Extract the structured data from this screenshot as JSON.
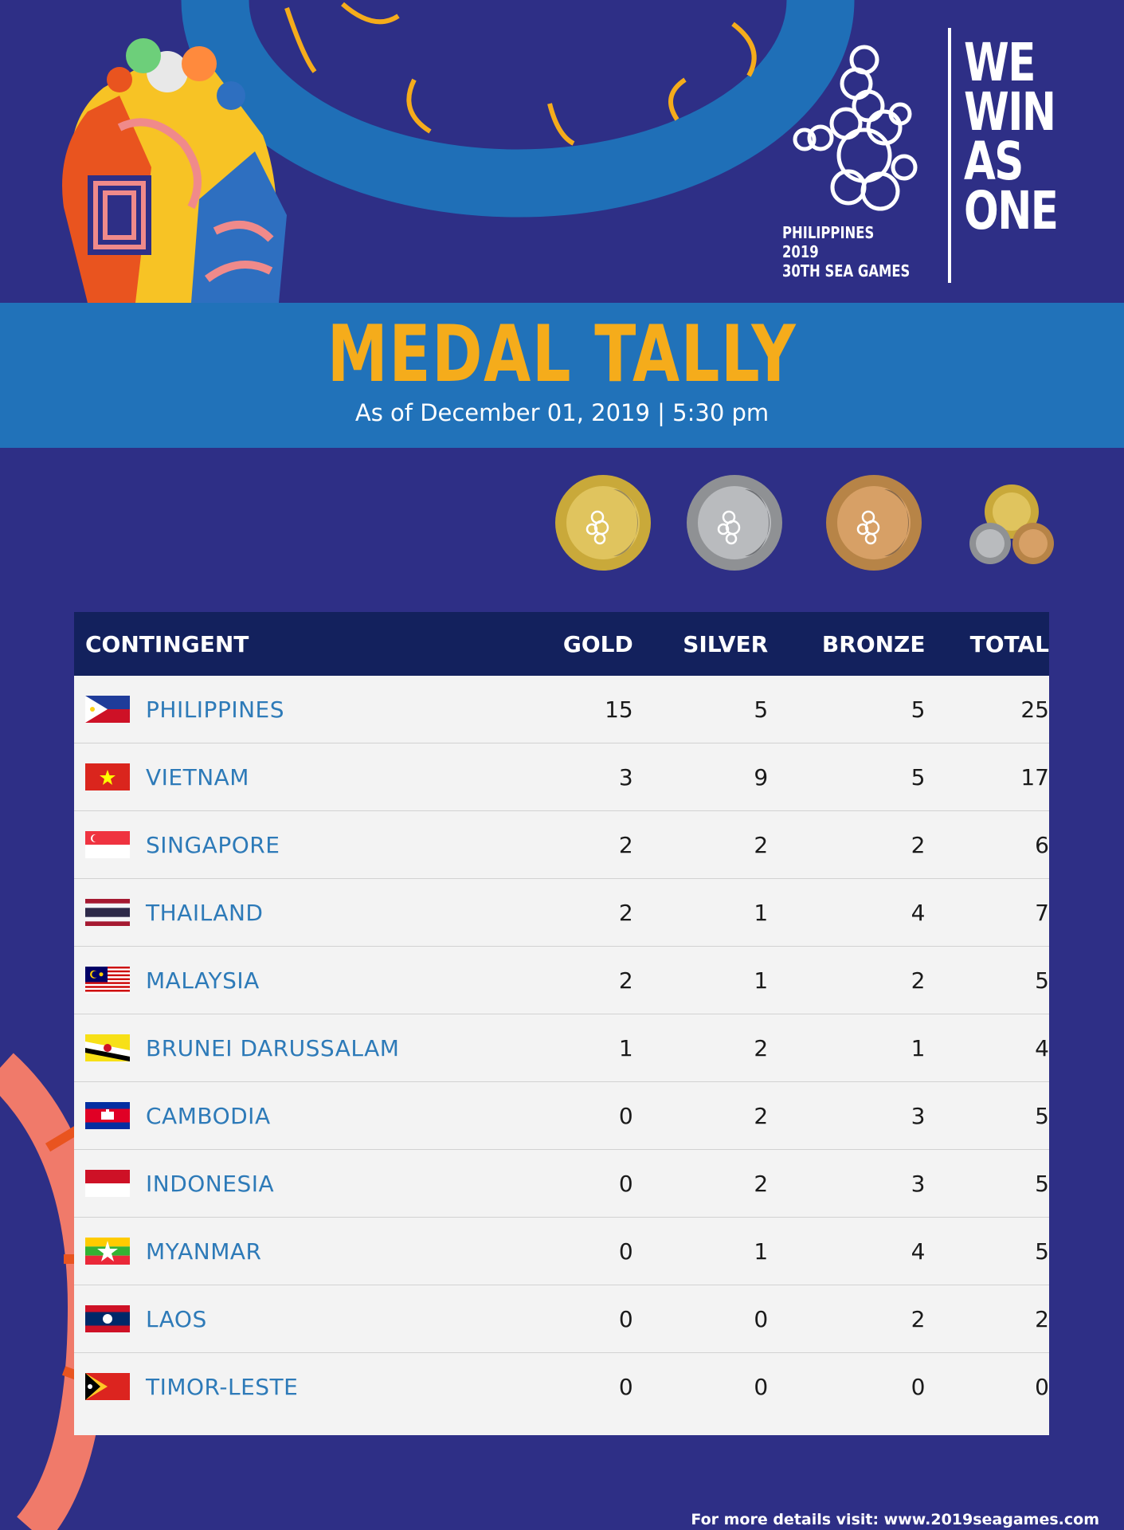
{
  "logo": {
    "line1": "PHILIPPINES 2019",
    "line2": "30TH SEA GAMES"
  },
  "slogan": [
    "WE",
    "WIN",
    "AS",
    "ONE"
  ],
  "banner": {
    "title": "MEDAL TALLY",
    "subtitle": "As of December 01, 2019 | 5:30 pm"
  },
  "medal_icons": [
    "gold-medal-icon",
    "silver-medal-icon",
    "bronze-medal-icon",
    "total-medals-icon"
  ],
  "colors": {
    "background": "#2e2f86",
    "banner": "#2172b9",
    "title": "#f5ac1b",
    "table_header": "#13215d",
    "country_text": "#2d7ab8"
  },
  "table": {
    "headers": {
      "contingent": "CONTINGENT",
      "gold": "GOLD",
      "silver": "SILVER",
      "bronze": "BRONZE",
      "total": "TOTAL"
    },
    "rows": [
      {
        "country": "PHILIPPINES",
        "gold": "15",
        "silver": "5",
        "bronze": "5",
        "total": "25"
      },
      {
        "country": "VIETNAM",
        "gold": "3",
        "silver": "9",
        "bronze": "5",
        "total": "17"
      },
      {
        "country": "SINGAPORE",
        "gold": "2",
        "silver": "2",
        "bronze": "2",
        "total": "6"
      },
      {
        "country": "THAILAND",
        "gold": "2",
        "silver": "1",
        "bronze": "4",
        "total": "7"
      },
      {
        "country": "MALAYSIA",
        "gold": "2",
        "silver": "1",
        "bronze": "2",
        "total": "5"
      },
      {
        "country": "BRUNEI DARUSSALAM",
        "gold": "1",
        "silver": "2",
        "bronze": "1",
        "total": "4"
      },
      {
        "country": "CAMBODIA",
        "gold": "0",
        "silver": "2",
        "bronze": "3",
        "total": "5"
      },
      {
        "country": "INDONESIA",
        "gold": "0",
        "silver": "2",
        "bronze": "3",
        "total": "5"
      },
      {
        "country": "MYANMAR",
        "gold": "0",
        "silver": "1",
        "bronze": "4",
        "total": "5"
      },
      {
        "country": "LAOS",
        "gold": "0",
        "silver": "0",
        "bronze": "2",
        "total": "2"
      },
      {
        "country": "TIMOR-LESTE",
        "gold": "0",
        "silver": "0",
        "bronze": "0",
        "total": "0"
      }
    ]
  },
  "footer": "For more details visit: www.2019seagames.com"
}
